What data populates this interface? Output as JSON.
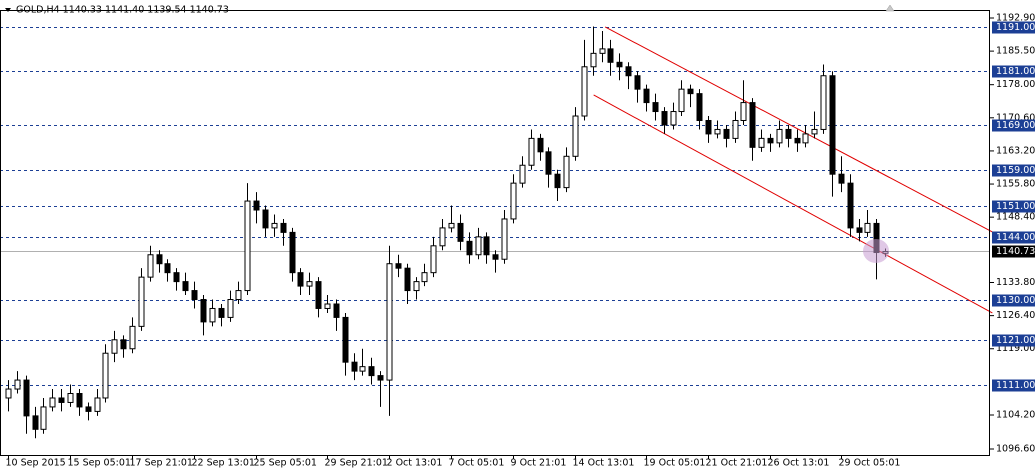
{
  "chart_data": {
    "type": "candlestick",
    "header": "GOLD,H4  1140.33 1141.40 1139.54 1140.73",
    "ylim": [
      1095.26,
      1194.24
    ],
    "yticks": [
      {
        "value": 1192.9,
        "label": "1192.90"
      },
      {
        "value": 1185.5,
        "label": "1185.50"
      },
      {
        "value": 1178,
        "label": "1178.00"
      },
      {
        "value": 1170.6,
        "label": "1170.60"
      },
      {
        "value": 1163.2,
        "label": "1163.20"
      },
      {
        "value": 1155.8,
        "label": "1155.80"
      },
      {
        "value": 1148.4,
        "label": "1148.40"
      },
      {
        "value": 1133.8,
        "label": "1133.80"
      },
      {
        "value": 1126.4,
        "label": "1126.40"
      },
      {
        "value": 1119,
        "label": "1119.00"
      },
      {
        "value": 1104.2,
        "label": "1104.20"
      },
      {
        "value": 1096.6,
        "label": "1096.60"
      }
    ],
    "levels": [
      {
        "value": 1191,
        "label": "1191.00"
      },
      {
        "value": 1181,
        "label": "1181.00"
      },
      {
        "value": 1169,
        "label": "1169.00"
      },
      {
        "value": 1159,
        "label": "1159.00"
      },
      {
        "value": 1151,
        "label": "1151.00"
      },
      {
        "value": 1144,
        "label": "1144.00"
      },
      {
        "value": 1130,
        "label": "1130.00"
      },
      {
        "value": 1121,
        "label": "1121.00"
      },
      {
        "value": 1111,
        "label": "1111.00"
      }
    ],
    "level_color": "#1c3f95",
    "price": 1140.73,
    "trendline_color": "#e00000",
    "trendlines": [
      {
        "x": [
          67.4,
          111.1
        ],
        "y": [
          1190.9,
          1145.1
        ]
      },
      {
        "x": [
          66.1,
          111.1
        ],
        "y": [
          1175.7,
          1127.0
        ]
      }
    ],
    "categories": [
      "10 Sep 2015",
      null,
      null,
      null,
      null,
      null,
      null,
      "15 Sep 05:01",
      null,
      null,
      null,
      null,
      null,
      null,
      "17 Sep 21:01",
      null,
      null,
      null,
      null,
      null,
      null,
      "22 Sep 13:01",
      null,
      null,
      null,
      null,
      null,
      null,
      "25 Sep 05:01",
      null,
      null,
      null,
      null,
      null,
      null,
      null,
      "29 Sep 21:01",
      null,
      null,
      null,
      null,
      null,
      null,
      "2 Oct 13:01",
      null,
      null,
      null,
      null,
      null,
      null,
      "7 Oct 05:01",
      null,
      null,
      null,
      null,
      null,
      null,
      "9 Oct 21:01",
      null,
      null,
      null,
      null,
      null,
      null,
      "14 Oct 13:01",
      null,
      null,
      null,
      null,
      null,
      null,
      null,
      "19 Oct 05:01",
      null,
      null,
      null,
      null,
      null,
      null,
      "21 Oct 21:01",
      null,
      null,
      null,
      null,
      null,
      null,
      "26 Oct 13:01",
      null,
      null,
      null,
      null,
      null,
      null,
      null,
      "29 Oct 05:01",
      null,
      null,
      null,
      null,
      null
    ],
    "candles": [
      [
        1108,
        1112,
        1105,
        1110
      ],
      [
        1110,
        1114,
        1109,
        1112
      ],
      [
        1112,
        1113,
        1100,
        1104
      ],
      [
        1104,
        1106,
        1099,
        1101
      ],
      [
        1101,
        1108,
        1100,
        1106
      ],
      [
        1106,
        1110,
        1105,
        1108
      ],
      [
        1108,
        1110,
        1105,
        1107
      ],
      [
        1107,
        1111,
        1106,
        1109
      ],
      [
        1109,
        1110,
        1104,
        1106
      ],
      [
        1106,
        1107,
        1103,
        1105
      ],
      [
        1105,
        1110,
        1104,
        1108
      ],
      [
        1108,
        1120,
        1107,
        1118
      ],
      [
        1118,
        1123,
        1116,
        1121
      ],
      [
        1121,
        1122,
        1117,
        1119
      ],
      [
        1119,
        1126,
        1118,
        1124
      ],
      [
        1124,
        1137,
        1123,
        1135
      ],
      [
        1135,
        1142,
        1134,
        1140
      ],
      [
        1140,
        1141,
        1136,
        1138
      ],
      [
        1138,
        1139,
        1134,
        1136
      ],
      [
        1136,
        1137,
        1132,
        1134
      ],
      [
        1134,
        1136,
        1131,
        1132
      ],
      [
        1132,
        1134,
        1128,
        1130
      ],
      [
        1130,
        1131,
        1122,
        1125
      ],
      [
        1125,
        1130,
        1124,
        1128
      ],
      [
        1128,
        1129,
        1124,
        1126
      ],
      [
        1126,
        1132,
        1125,
        1130
      ],
      [
        1130,
        1134,
        1129,
        1132
      ],
      [
        1132,
        1156,
        1131,
        1152
      ],
      [
        1152,
        1154,
        1147,
        1150
      ],
      [
        1150,
        1151,
        1144,
        1146
      ],
      [
        1146,
        1149,
        1144,
        1147
      ],
      [
        1147,
        1148,
        1142,
        1145
      ],
      [
        1145,
        1146,
        1134,
        1136
      ],
      [
        1136,
        1137,
        1131,
        1133
      ],
      [
        1133,
        1136,
        1131,
        1134
      ],
      [
        1134,
        1135,
        1126,
        1128
      ],
      [
        1128,
        1131,
        1127,
        1129
      ],
      [
        1129,
        1130,
        1123,
        1126
      ],
      [
        1126,
        1127,
        1113,
        1116
      ],
      [
        1116,
        1118,
        1112,
        1114
      ],
      [
        1114,
        1119,
        1113,
        1115
      ],
      [
        1115,
        1117,
        1111,
        1113
      ],
      [
        1113,
        1114,
        1106,
        1112
      ],
      [
        1112,
        1142,
        1104,
        1138
      ],
      [
        1138,
        1140,
        1135,
        1137
      ],
      [
        1137,
        1138,
        1129,
        1132
      ],
      [
        1132,
        1135,
        1130,
        1134
      ],
      [
        1134,
        1138,
        1133,
        1136
      ],
      [
        1136,
        1144,
        1135,
        1142
      ],
      [
        1142,
        1148,
        1141,
        1146
      ],
      [
        1146,
        1151,
        1145,
        1147
      ],
      [
        1147,
        1149,
        1141,
        1143
      ],
      [
        1143,
        1145,
        1138,
        1140
      ],
      [
        1140,
        1146,
        1139,
        1144
      ],
      [
        1144,
        1145,
        1138,
        1140
      ],
      [
        1140,
        1141,
        1136,
        1139
      ],
      [
        1139,
        1150,
        1138,
        1148
      ],
      [
        1148,
        1158,
        1147,
        1156
      ],
      [
        1156,
        1162,
        1155,
        1160
      ],
      [
        1160,
        1168,
        1159,
        1166
      ],
      [
        1166,
        1167,
        1161,
        1163
      ],
      [
        1163,
        1164,
        1155,
        1158
      ],
      [
        1158,
        1159,
        1152,
        1155
      ],
      [
        1155,
        1164,
        1154,
        1162
      ],
      [
        1162,
        1173,
        1161,
        1171
      ],
      [
        1171,
        1188,
        1170,
        1182
      ],
      [
        1182,
        1191,
        1180,
        1185
      ],
      [
        1185,
        1190,
        1183,
        1186
      ],
      [
        1186,
        1188,
        1180,
        1183
      ],
      [
        1183,
        1185,
        1179,
        1182
      ],
      [
        1182,
        1183,
        1177,
        1180
      ],
      [
        1180,
        1181,
        1174,
        1177
      ],
      [
        1177,
        1178,
        1172,
        1174
      ],
      [
        1174,
        1176,
        1170,
        1172
      ],
      [
        1172,
        1173,
        1167,
        1169
      ],
      [
        1169,
        1174,
        1168,
        1172
      ],
      [
        1172,
        1179,
        1171,
        1177
      ],
      [
        1177,
        1178,
        1173,
        1176
      ],
      [
        1176,
        1177,
        1168,
        1170
      ],
      [
        1170,
        1171,
        1165,
        1167
      ],
      [
        1167,
        1170,
        1166,
        1168
      ],
      [
        1168,
        1169,
        1164,
        1166
      ],
      [
        1166,
        1172,
        1165,
        1170
      ],
      [
        1170,
        1179,
        1169,
        1174
      ],
      [
        1174,
        1175,
        1161,
        1164
      ],
      [
        1164,
        1168,
        1163,
        1166
      ],
      [
        1166,
        1167,
        1163,
        1165
      ],
      [
        1165,
        1170,
        1164,
        1168
      ],
      [
        1168,
        1169,
        1164,
        1166
      ],
      [
        1166,
        1168,
        1163,
        1165
      ],
      [
        1165,
        1169,
        1164,
        1167
      ],
      [
        1167,
        1172,
        1166,
        1168
      ],
      [
        1168,
        1182.5,
        1167,
        1180
      ],
      [
        1180,
        1181,
        1153,
        1158
      ],
      [
        1158,
        1162,
        1154,
        1156
      ],
      [
        1156,
        1158,
        1144,
        1146
      ],
      [
        1146,
        1148,
        1143,
        1145
      ],
      [
        1145,
        1150,
        1144,
        1147
      ],
      [
        1147,
        1148,
        1134.5,
        1140.5
      ],
      [
        1140.33,
        1141.4,
        1139.54,
        1140.73
      ]
    ]
  }
}
